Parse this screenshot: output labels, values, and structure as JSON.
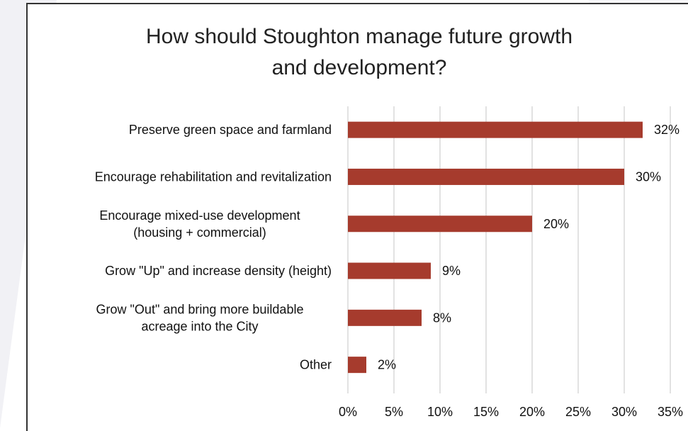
{
  "chart_data": {
    "type": "bar",
    "orientation": "horizontal",
    "title_lines": [
      "How should Stoughton manage future growth",
      "and development?"
    ],
    "categories": [
      [
        "Preserve green space and farmland"
      ],
      [
        "Encourage rehabilitation and revitalization"
      ],
      [
        "Encourage mixed-use development",
        "(housing + commercial)"
      ],
      [
        "Grow \"Up\" and increase density (height)"
      ],
      [
        "Grow \"Out\" and bring more buildable",
        "acreage into the City"
      ],
      [
        "Other"
      ]
    ],
    "values": [
      32,
      30,
      20,
      9,
      8,
      2
    ],
    "data_labels": [
      "32%",
      "30%",
      "20%",
      "9%",
      "8%",
      "2%"
    ],
    "x_ticks": [
      0,
      5,
      10,
      15,
      20,
      25,
      30,
      35
    ],
    "x_tick_labels": [
      "0%",
      "5%",
      "10%",
      "15%",
      "20%",
      "25%",
      "30%",
      "35%"
    ],
    "xlim": [
      0,
      35
    ],
    "grid": "vertical",
    "bar_color": "#a63b2d",
    "grid_color": "#d9d9d9"
  }
}
